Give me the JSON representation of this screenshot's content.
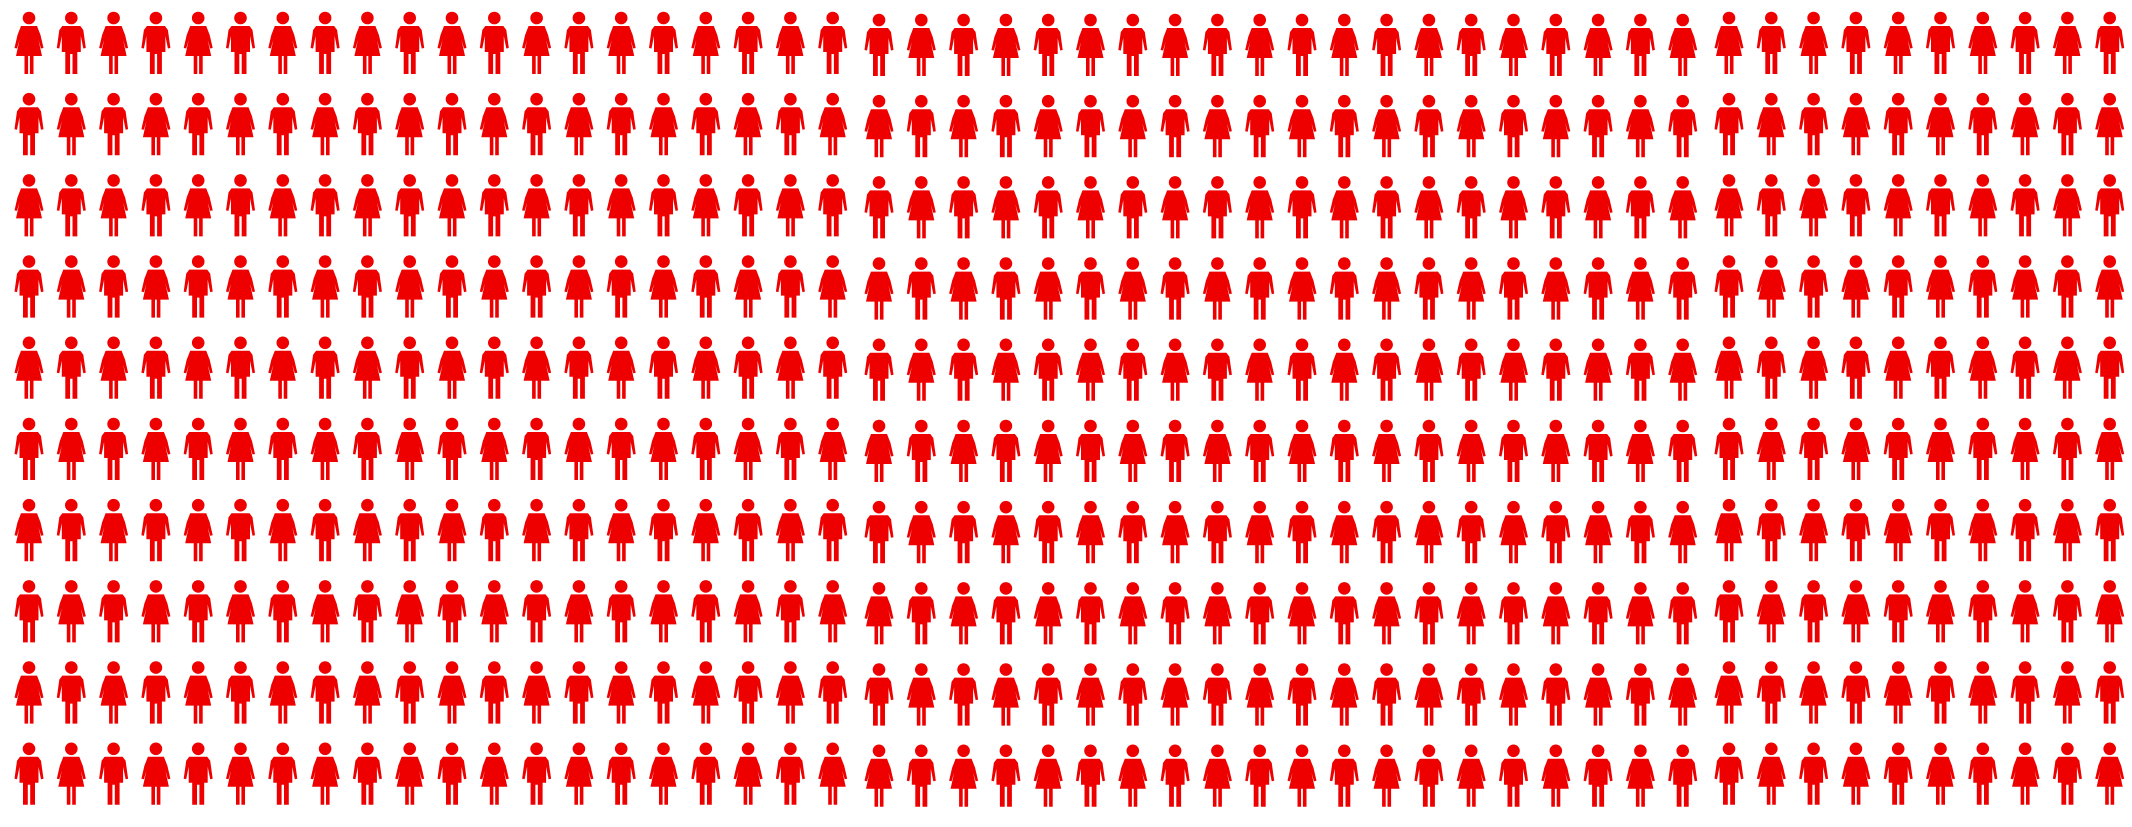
{
  "graphic": {
    "icon": "person-icon",
    "figure_color": "#ee0000",
    "background_color": "#ffffff",
    "panels": [
      {
        "rows": 10,
        "columns": 20,
        "count": 200
      },
      {
        "rows": 10,
        "columns": 20,
        "count": 200
      },
      {
        "rows": 10,
        "columns": 10,
        "count": 100
      }
    ],
    "total_figures": 500
  }
}
